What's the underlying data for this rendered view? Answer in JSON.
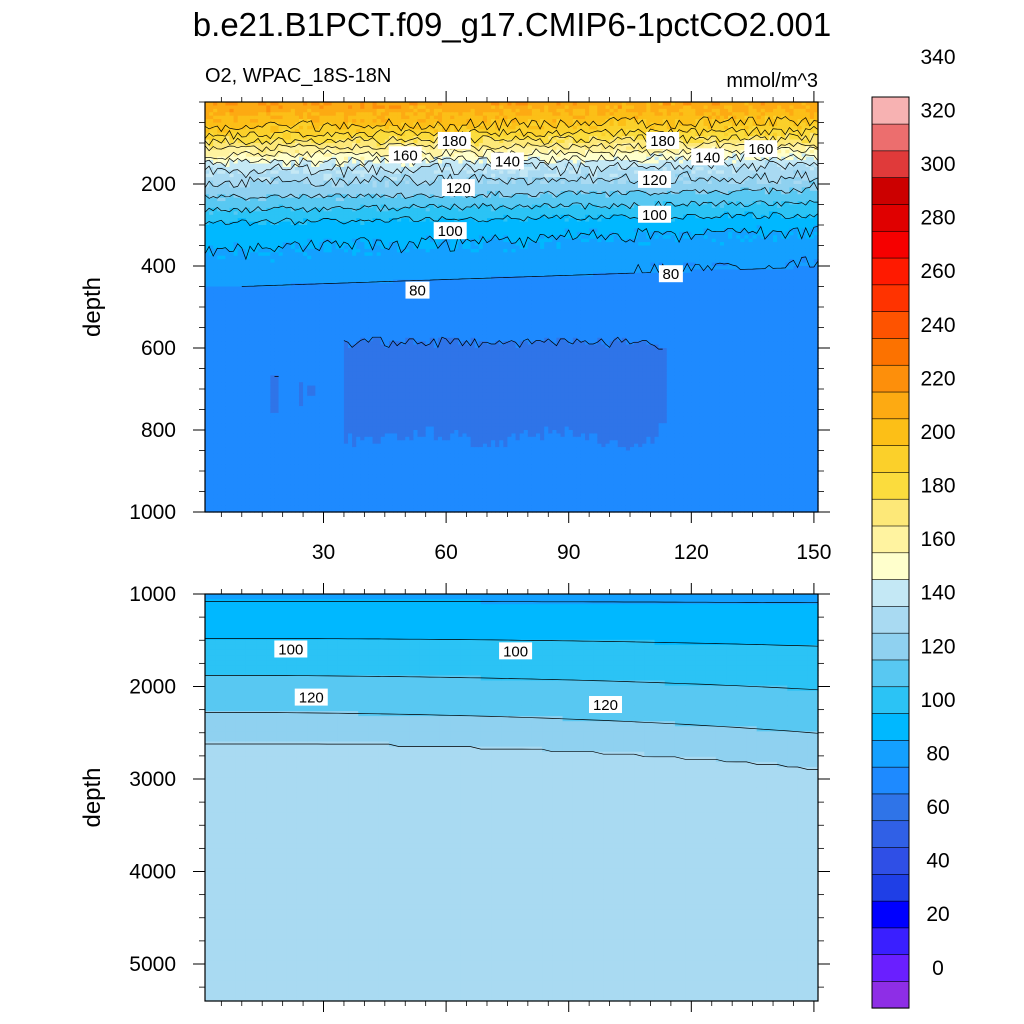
{
  "figure": {
    "title": "b.e21.B1PCT.f09_g17.CMIP6-1pctCO2.001",
    "variable_label": "O2, WPAC_18S-18N",
    "units_label": "mmol/m^3"
  },
  "chart_data": [
    {
      "type": "heatmap",
      "panel": "upper",
      "ylabel": "depth",
      "xlabel": "",
      "xlim": [
        1,
        151
      ],
      "ylim": [
        1000,
        0
      ],
      "y_inverted": true,
      "xticks": [
        30,
        60,
        90,
        120,
        150
      ],
      "yticks": [
        200,
        400,
        600,
        800,
        1000
      ],
      "contour_labels": [
        {
          "value": 180,
          "x": 62,
          "depth": 95
        },
        {
          "value": 180,
          "x": 113,
          "depth": 95
        },
        {
          "value": 160,
          "x": 50,
          "depth": 130
        },
        {
          "value": 160,
          "x": 137,
          "depth": 115
        },
        {
          "value": 140,
          "x": 75,
          "depth": 145
        },
        {
          "value": 140,
          "x": 124,
          "depth": 135
        },
        {
          "value": 120,
          "x": 63,
          "depth": 210
        },
        {
          "value": 120,
          "x": 111,
          "depth": 190
        },
        {
          "value": 100,
          "x": 61,
          "depth": 315
        },
        {
          "value": 100,
          "x": 111,
          "depth": 275
        },
        {
          "value": 80,
          "x": 53,
          "depth": 460
        },
        {
          "value": 80,
          "x": 115,
          "depth": 420
        }
      ],
      "notes": "Oxygen decreases with depth; minimum-oxygen core (60-70) between x~33-113 and depth ~570-850"
    },
    {
      "type": "heatmap",
      "panel": "lower",
      "ylabel": "depth",
      "xlabel": "",
      "xlim": [
        1,
        151
      ],
      "ylim": [
        5400,
        1000
      ],
      "y_inverted": true,
      "xticks": [
        30,
        60,
        90,
        120,
        150
      ],
      "yticks": [
        1000,
        2000,
        3000,
        4000,
        5000
      ],
      "contour_labels": [
        {
          "value": 100,
          "x": 22,
          "depth": 1600
        },
        {
          "value": 100,
          "x": 77,
          "depth": 1620
        },
        {
          "value": 120,
          "x": 27,
          "depth": 2120
        },
        {
          "value": 120,
          "x": 99,
          "depth": 2200
        }
      ],
      "notes": "Oxygen increases with depth from ~90 at 1000 m to ~130-140 below 2600-3000 m"
    }
  ],
  "colorbar": {
    "tick_labels": [
      "0",
      "20",
      "40",
      "60",
      "80",
      "100",
      "120",
      "140",
      "160",
      "180",
      "200",
      "220",
      "240",
      "260",
      "280",
      "300",
      "320",
      "340"
    ],
    "levels_min": -10,
    "levels_step": 10,
    "colors": [
      "#8e2ee6",
      "#6a1fff",
      "#3a1fff",
      "#0000ff",
      "#1f3fe6",
      "#2f4fe6",
      "#3060e6",
      "#2f74e8",
      "#1e8aff",
      "#14a0ff",
      "#00b8ff",
      "#2bc3f5",
      "#58c8f2",
      "#8fd1f0",
      "#a9daf2",
      "#c4e8f5",
      "#ffffcc",
      "#fff3a0",
      "#fde878",
      "#fbdc3d",
      "#fbd02a",
      "#fcbf17",
      "#fdaa12",
      "#fd8f0b",
      "#fc7200",
      "#fe5300",
      "#ff3300",
      "#ff1a00",
      "#f60000",
      "#e00000",
      "#cc0000",
      "#e03a3a",
      "#ec6e6e",
      "#f7b2b2"
    ]
  }
}
